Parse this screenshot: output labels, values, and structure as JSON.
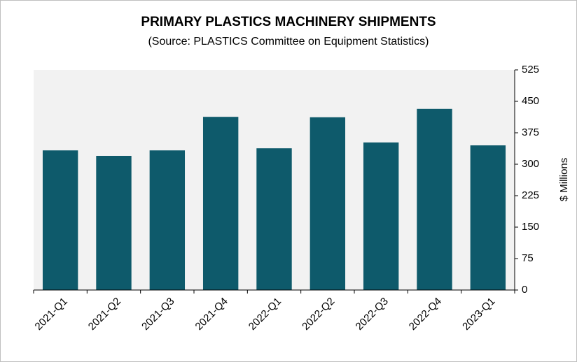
{
  "chart_data": {
    "type": "bar",
    "title": "PRIMARY PLASTICS MACHINERY SHIPMENTS",
    "subtitle": "(Source: PLASTICS Committee on Equipment Statistics)",
    "y_label": "$ Millions",
    "categories": [
      "2021-Q1",
      "2021-Q2",
      "2021-Q3",
      "2021-Q4",
      "2022-Q1",
      "2022-Q2",
      "2022-Q3",
      "2022-Q4",
      "2023-Q1"
    ],
    "values": [
      333,
      320,
      333,
      413,
      338,
      412,
      352,
      432,
      345
    ],
    "color": "#0e5a6b",
    "ylim": [
      0,
      525
    ],
    "yticks": [
      0,
      75,
      150,
      225,
      300,
      375,
      450,
      525
    ],
    "y_axis_side": "right",
    "grid": false
  }
}
